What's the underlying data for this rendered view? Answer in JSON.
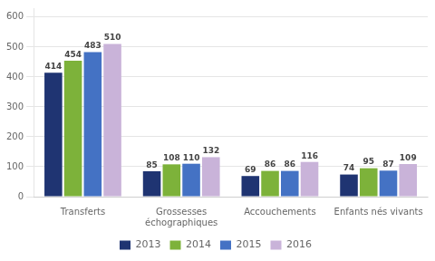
{
  "chart_data": {
    "type": "bar",
    "categories": [
      "Transferts",
      "Grossesses\néchographiques",
      "Accouchements",
      "Enfants nés vivants"
    ],
    "series": [
      {
        "name": "2013",
        "color": "#1F3472",
        "values": [
          414,
          85,
          69,
          74
        ]
      },
      {
        "name": "2014",
        "color": "#7DB23A",
        "values": [
          454,
          108,
          86,
          95
        ]
      },
      {
        "name": "2015",
        "color": "#4472C4",
        "values": [
          483,
          110,
          86,
          87
        ]
      },
      {
        "name": "2016",
        "color": "#C9B3D9",
        "values": [
          510,
          132,
          116,
          109
        ]
      }
    ],
    "ylim": [
      0,
      630
    ],
    "yticks": [
      0,
      100,
      200,
      300,
      400,
      500,
      600
    ],
    "grid": true,
    "legend": "bottom",
    "data_labels": true
  }
}
